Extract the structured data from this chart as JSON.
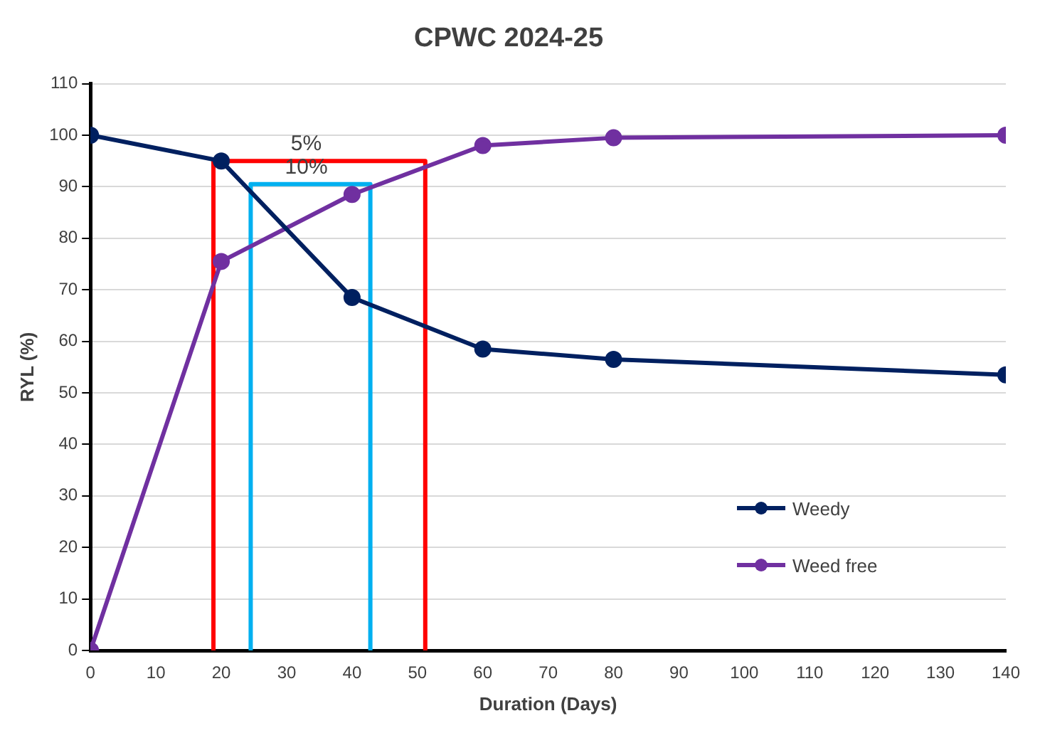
{
  "chart_data": {
    "type": "line",
    "title": "CPWC 2024-25",
    "xlabel": "Duration (Days)",
    "ylabel": "RYL (%)",
    "series": [
      {
        "name": "Weedy",
        "color": "#002060",
        "x": [
          0,
          20,
          40,
          60,
          80,
          140
        ],
        "values": [
          100,
          95,
          68.5,
          58.5,
          56.5,
          53.5
        ]
      },
      {
        "name": "Weed free",
        "color": "#7030a0",
        "x": [
          0,
          20,
          40,
          60,
          80,
          140
        ],
        "values": [
          0,
          75.5,
          88.5,
          98,
          99.5,
          100
        ]
      },
      {
        "type": "line",
        "color": "#ff0000",
        "marker": "none",
        "x": [
          18.8,
          18.8,
          51.2,
          51.2
        ],
        "values": [
          0,
          95,
          95,
          0
        ]
      },
      {
        "type": "line",
        "color": "#00b0f0",
        "marker": "none",
        "x": [
          24.5,
          24.5,
          42.8,
          42.8
        ],
        "values": [
          0,
          90.5,
          90.5,
          0
        ]
      }
    ],
    "annotations": [
      {
        "text": "5%",
        "x": 33,
        "y": 95
      },
      {
        "text": "10%",
        "x": 33,
        "y": 90.5
      }
    ],
    "xlim": [
      0,
      140
    ],
    "xticks": [
      0,
      10,
      20,
      30,
      40,
      50,
      60,
      70,
      80,
      90,
      100,
      110,
      120,
      130,
      140
    ],
    "ylim": [
      0,
      110
    ],
    "yticks": [
      0,
      10,
      20,
      30,
      40,
      50,
      60,
      70,
      80,
      90,
      100,
      110
    ],
    "grid": "y",
    "legend": "bottom right",
    "marker": "circle",
    "line_style": "solid"
  }
}
